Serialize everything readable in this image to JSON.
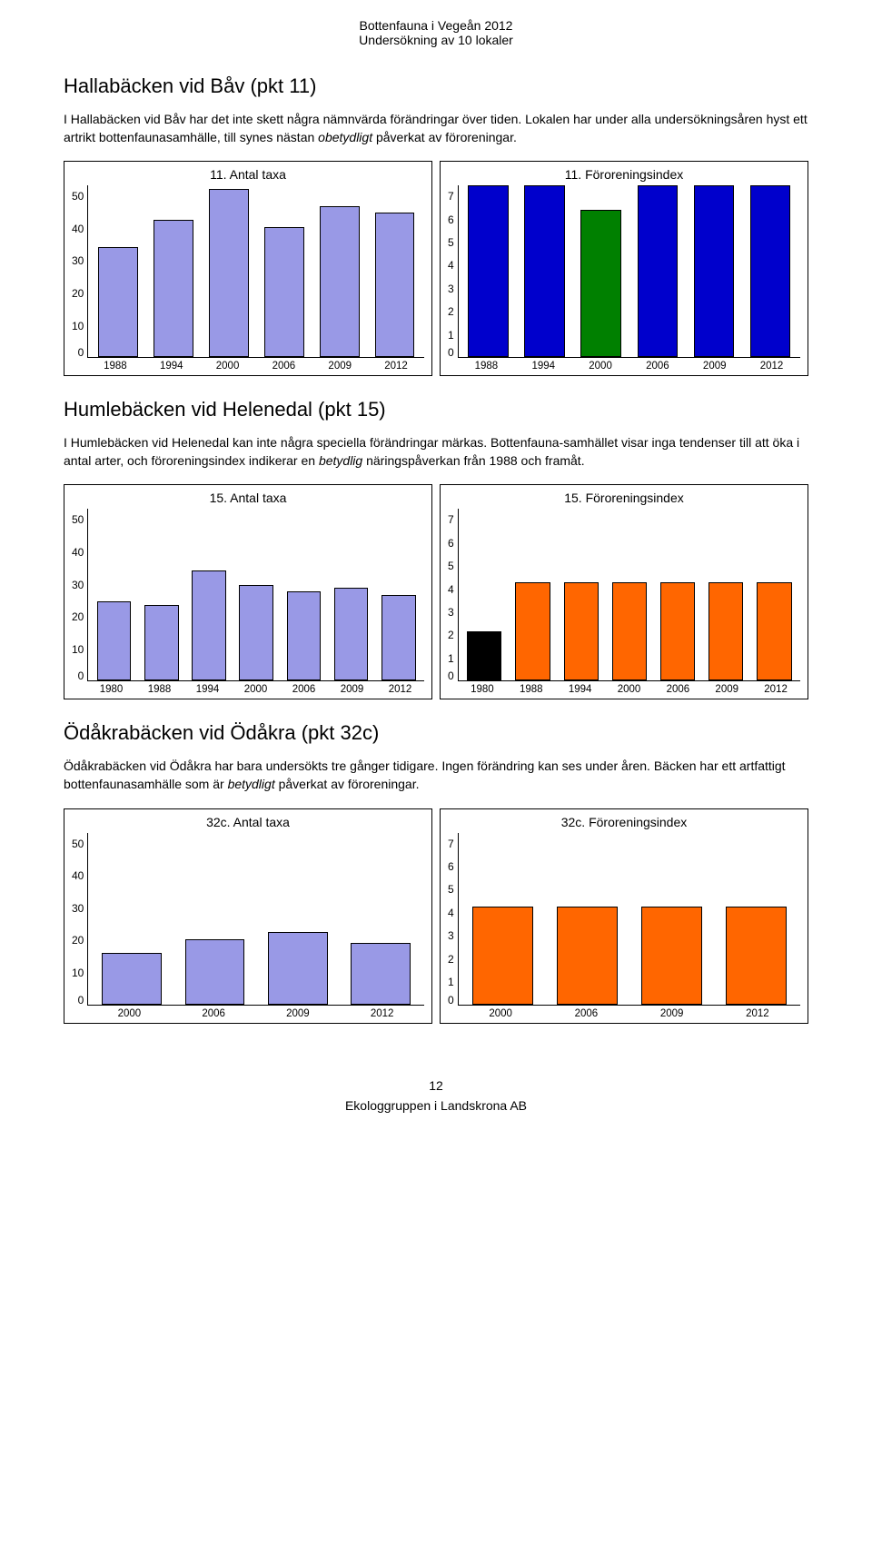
{
  "header": {
    "line1": "Bottenfauna i Vegeån 2012",
    "line2": "Undersökning av 10 lokaler"
  },
  "section1": {
    "title": "Hallabäcken vid Båv (pkt 11)",
    "body_pre": "I Hallabäcken vid Båv har det inte skett några nämnvärda förändringar över tiden. Lokalen har under alla undersökningsåren hyst ett artrikt bottenfaunasamhälle, till synes nästan ",
    "body_italic": "obetydligt",
    "body_post": " påverkat av föroreningar."
  },
  "chart11a": {
    "title": "11. Antal taxa",
    "type": "bar",
    "ylim": [
      0,
      50
    ],
    "yticks": [
      50,
      40,
      30,
      20,
      10,
      0
    ],
    "categories": [
      "1988",
      "1994",
      "2000",
      "2006",
      "2009",
      "2012"
    ],
    "values": [
      32,
      40,
      49,
      38,
      44,
      42
    ],
    "bar_color": "#9999e6",
    "bar_border": "#000000",
    "background": "#ffffff"
  },
  "chart11b": {
    "title": "11. Föroreningsindex",
    "type": "bar",
    "ylim": [
      0,
      7
    ],
    "yticks": [
      7,
      6,
      5,
      4,
      3,
      2,
      1,
      0
    ],
    "categories": [
      "1988",
      "1994",
      "2000",
      "2006",
      "2009",
      "2012"
    ],
    "values": [
      7,
      7,
      6,
      7,
      7,
      7
    ],
    "bar_colors": [
      "#0000cc",
      "#0000cc",
      "#008000",
      "#0000cc",
      "#0000cc",
      "#0000cc"
    ],
    "bar_border": "#000000",
    "background": "#ffffff"
  },
  "section2": {
    "title": "Humlebäcken vid Helenedal (pkt 15)",
    "body_pre": "I Humlebäcken vid Helenedal kan inte några speciella förändringar märkas. Bottenfauna-samhället visar inga tendenser till att öka i antal arter, och föroreningsindex indikerar en ",
    "body_italic": "betydlig",
    "body_post": " näringspåverkan från 1988 och framåt."
  },
  "chart15a": {
    "title": "15. Antal taxa",
    "type": "bar",
    "ylim": [
      0,
      50
    ],
    "yticks": [
      50,
      40,
      30,
      20,
      10,
      0
    ],
    "categories": [
      "1980",
      "1988",
      "1994",
      "2000",
      "2006",
      "2009",
      "2012"
    ],
    "values": [
      23,
      22,
      32,
      28,
      26,
      27,
      25
    ],
    "bar_color": "#9999e6",
    "bar_border": "#000000",
    "background": "#ffffff"
  },
  "chart15b": {
    "title": "15. Föroreningsindex",
    "type": "bar",
    "ylim": [
      0,
      7
    ],
    "yticks": [
      7,
      6,
      5,
      4,
      3,
      2,
      1,
      0
    ],
    "categories": [
      "1980",
      "1988",
      "1994",
      "2000",
      "2006",
      "2009",
      "2012"
    ],
    "values": [
      2,
      4,
      4,
      4,
      4,
      4,
      4
    ],
    "bar_colors": [
      "#000000",
      "#ff6600",
      "#ff6600",
      "#ff6600",
      "#ff6600",
      "#ff6600",
      "#ff6600"
    ],
    "bar_border": "#000000",
    "background": "#ffffff"
  },
  "section3": {
    "title": "Ödåkrabäcken vid Ödåkra (pkt 32c)",
    "body_pre": "Ödåkrabäcken vid Ödåkra har bara undersökts tre gånger tidigare. Ingen förändring kan ses under åren. Bäcken har ett artfattigt bottenfaunasamhälle som är ",
    "body_italic": "betydligt",
    "body_post": " påverkat av föroreningar."
  },
  "chart32a": {
    "title": "32c. Antal taxa",
    "type": "bar",
    "ylim": [
      0,
      50
    ],
    "yticks": [
      50,
      40,
      30,
      20,
      10,
      0
    ],
    "categories": [
      "2000",
      "2006",
      "2009",
      "2012"
    ],
    "values": [
      15,
      19,
      21,
      18
    ],
    "bar_color": "#9999e6",
    "bar_border": "#000000",
    "background": "#ffffff"
  },
  "chart32b": {
    "title": "32c. Föroreningsindex",
    "type": "bar",
    "ylim": [
      0,
      7
    ],
    "yticks": [
      7,
      6,
      5,
      4,
      3,
      2,
      1,
      0
    ],
    "categories": [
      "2000",
      "2006",
      "2009",
      "2012"
    ],
    "values": [
      4,
      4,
      4,
      4
    ],
    "bar_colors": [
      "#ff6600",
      "#ff6600",
      "#ff6600",
      "#ff6600"
    ],
    "bar_border": "#000000",
    "background": "#ffffff"
  },
  "footer": {
    "page": "12",
    "org": "Ekologgruppen i Landskrona AB"
  }
}
